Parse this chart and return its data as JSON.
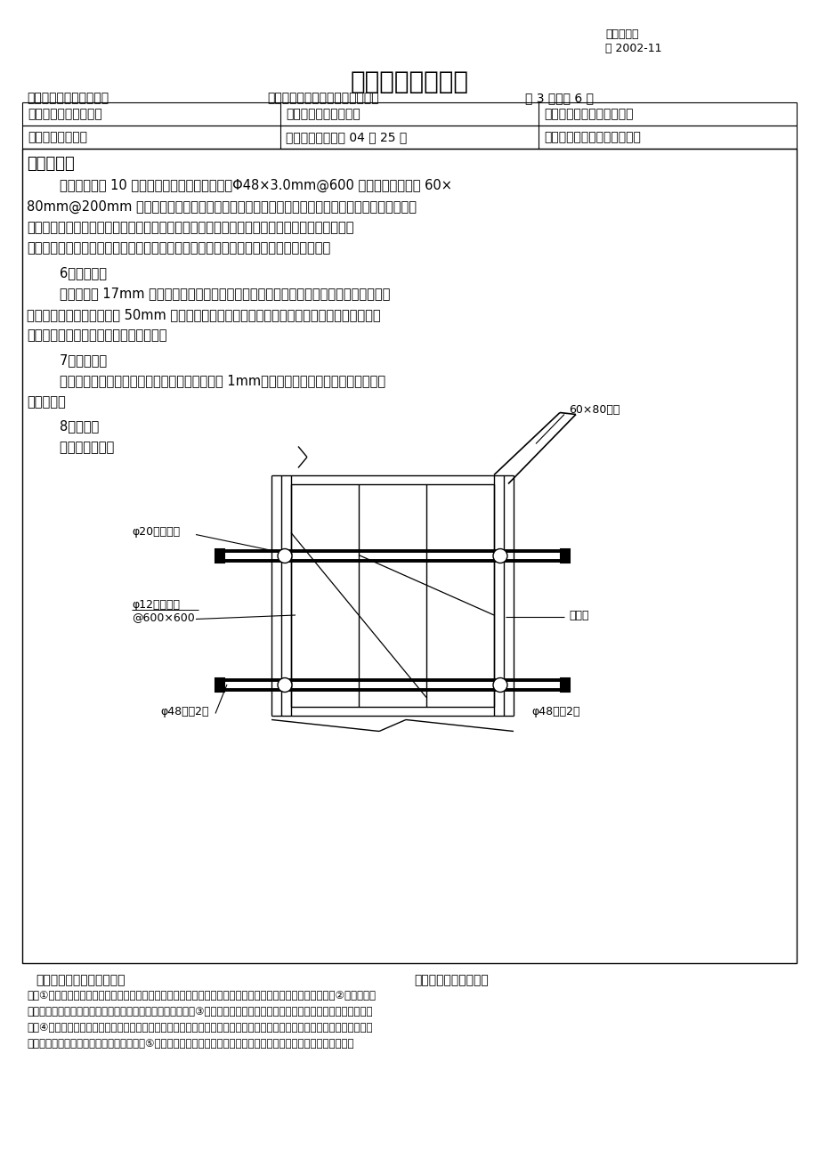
{
  "title": "施工技术交底记录",
  "top_right_line1": "某某监统编",
  "top_right_line2": "施 2002-11",
  "proj_name": "工程名称：某某长洲项目",
  "proj_unit": "施工单位：某某建设集团有限公司",
  "proj_page": "第 3 页，共 6 页",
  "row1c1": "项目技术负责人：某某",
  "row1c2": "项目专业施工员：某某",
  "row1c3": "项目专业质量检查员：某某",
  "row2c1": "专业班组长：某某",
  "row2c2": "交底时间：某某年 04 月 25 日",
  "row2c3": "交底地址：工地项目部办公室",
  "sec_title": "交底内容：",
  "para1": "        顶板模板采用 10 厚度多层竹胶板，主龙骨采用Φ48×3.0mm@600 钢管，次龙骨选用 60×",
  "para2": "80mm@200mm 双面刨光方木，为保证顶板的整体砼成型效果，将整个顶板的多层板按同一顺序，",
  "para3": "同一方向对缝平铺，必须保证接缝处下方有龙骨，且拼缝严密，表面无错台现象，若与柱相交，",
  "para4": "则不刻意躲开柱头，只在该处将多层板锯开与柱尺寸相应洞口下垫方木作为柱头的龙骨。",
  "sec6": "        6、楼梯模板",
  "para6a": "        楼梯模板为 17mm 厚木制多层板，踏步侧板两端钉在梯段侧板木档上，靠墙的一端钉在反",
  "para6b": "三角木上，踏步板龙骨采用 50mm 厚方木，制作时在梯段侧板内划出踏步形状与尺寸，并在踏步",
  "para6c": "高度线一侧留出踏步侧板厚度定上木档。",
  "sec7": "        7、模板加工",
  "para7a": "        柱梁模板加工必须满足尺寸，两对角线误差小于 1mm，尺寸过大的模板需进行刨边，否则",
  "para7b": "禁止使用。",
  "sec8": "        8、附图：",
  "sec8b": "        剪力墙支模图：",
  "lbl_60x80": "60×80木枋",
  "lbl_phi20": "φ20塑料套管",
  "lbl_phi12a": "φ12螺杆间距",
  "lbl_phi12b": "@600×600",
  "lbl_bamboo": "竹胶板",
  "lbl_phi48l": "φ48钢管2根",
  "lbl_phi48r": "φ48钢管2根",
  "sign_left": "施工单位技术交底人签字：",
  "sign_right": "施工班组接受人签字：",
  "note1": "注：①执行标准名称及编号系指施工单位自行制定的企业标准（如施工操作工艺标准、工法等）的名称、编号；②企业标准应",
  "note2": "有编制人、批准人、批准时间、执行时间、标准名称及编号；③企业标准的质量水平不得低于国家施工质量验收规范的规定要",
  "note3": "求；④施工单位当前如无企业标准，可暂选用国家有关部委、省市及其他企业公开发布的标准，但选用标准的质量水平不得低",
  "note4": "于国家现行施工质量验收规范的规定要求；⑤交底内容摘要，只填写已交待执行标准中的章、节标题和补充内容概要。",
  "bg": "#ffffff"
}
